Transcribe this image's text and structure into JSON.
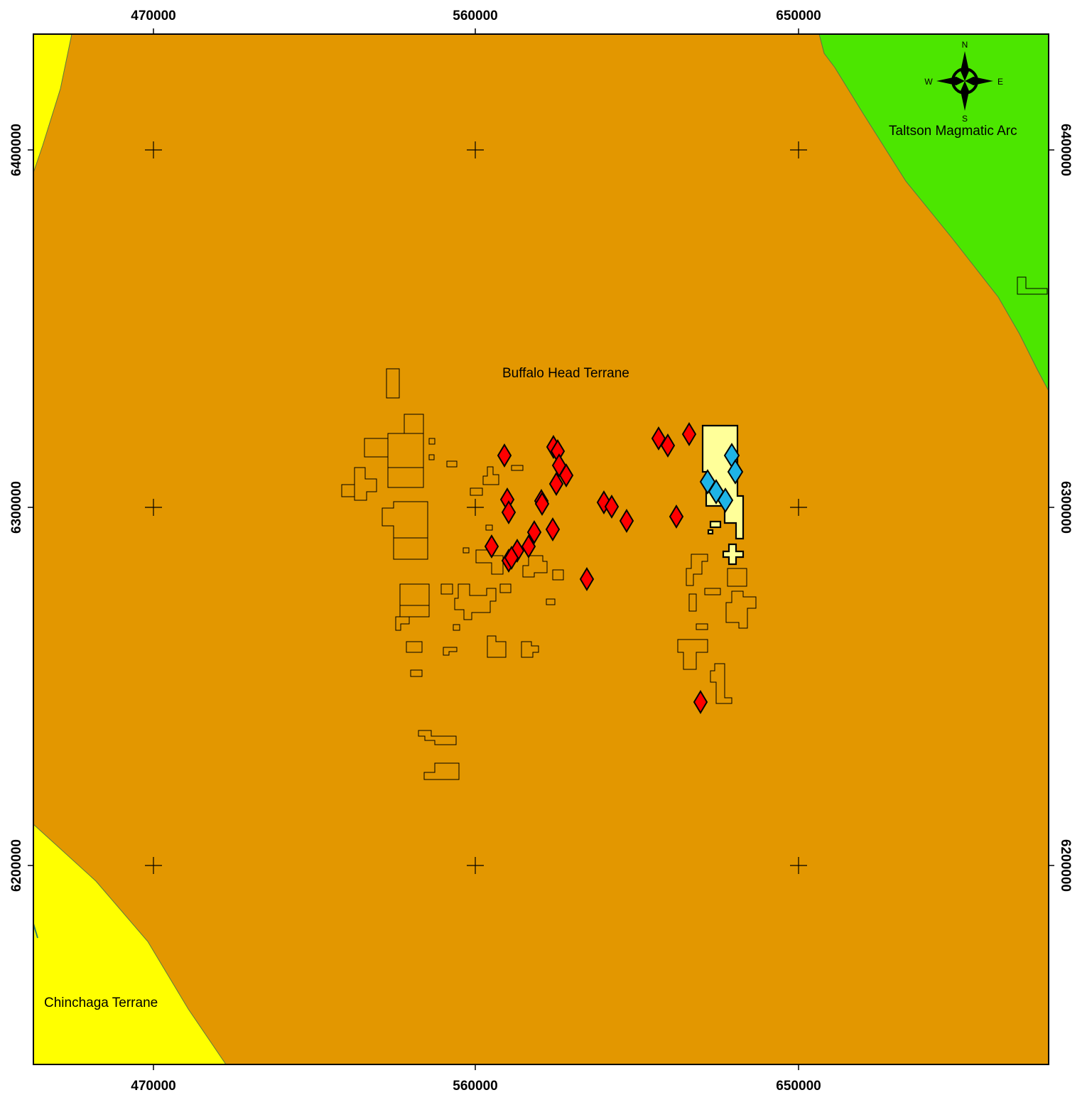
{
  "map": {
    "ticks_x": [
      "470000",
      "560000",
      "650000"
    ],
    "ticks_y": [
      "6400000",
      "6300000",
      "6200000"
    ],
    "terranes": [
      {
        "name": "Buffalo Head Terrane",
        "color": "#e39700"
      },
      {
        "name": "Taltson Magmatic Arc",
        "color": "#4ce600"
      },
      {
        "name": "Chinchaga Terrane",
        "color": "#ffff00"
      }
    ],
    "compass": {
      "n": "N",
      "s": "S",
      "e": "E",
      "w": "W"
    },
    "symbols": {
      "red_marker_color": "#ff0000",
      "blue_marker_color": "#1eb4e6",
      "highlight_claim_color": "#ffff99"
    }
  }
}
